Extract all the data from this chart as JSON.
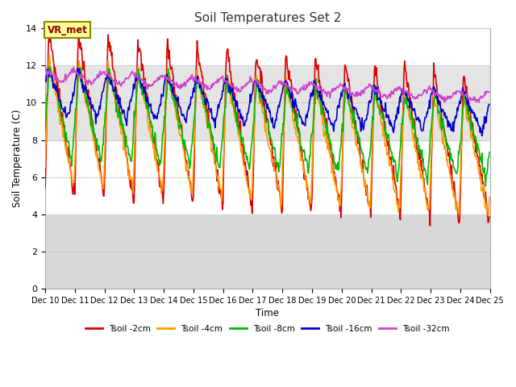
{
  "title": "Soil Temperatures Set 2",
  "xlabel": "Time",
  "ylabel": "Soil Temperature (C)",
  "ylim": [
    0,
    14
  ],
  "y_tick_positions": [
    0,
    2,
    4,
    6,
    8,
    10,
    12,
    14
  ],
  "x_tick_labels": [
    "Dec 10",
    "Dec 11",
    "Dec 12",
    "Dec 13",
    "Dec 14",
    "Dec 15",
    "Dec 16",
    "Dec 17",
    "Dec 18",
    "Dec 19",
    "Dec 20",
    "Dec 21",
    "Dec 22",
    "Dec 23",
    "Dec 24",
    "Dec 25"
  ],
  "colors": {
    "Tsoil -2cm": "#dd0000",
    "Tsoil -4cm": "#ff9900",
    "Tsoil -8cm": "#00bb00",
    "Tsoil -16cm": "#0000cc",
    "Tsoil -32cm": "#cc44cc"
  },
  "annotation_text": "VR_met",
  "annotation_box_color": "#ffff99",
  "annotation_box_edge": "#888800",
  "bg_color": "#ffffff",
  "plot_bg_color": "#ffffff",
  "shade_low_color": "#d8d8d8",
  "shade_mid_color": "#e4e4e4",
  "line_width": 1.2,
  "n_days": 15,
  "pts_per_day": 48
}
